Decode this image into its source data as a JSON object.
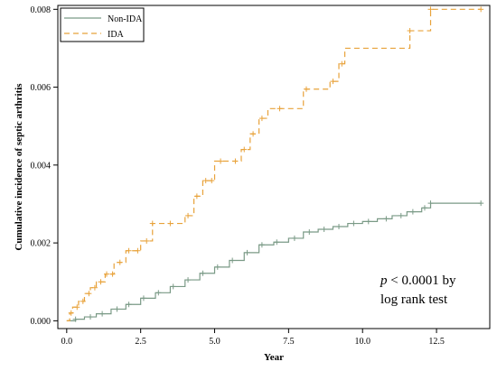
{
  "chart_data": {
    "type": "line",
    "xlabel": "Year",
    "ylabel": "Cumulative incidence of septic arthritis",
    "xlim": [
      -0.3,
      14.3
    ],
    "ylim": [
      -0.0002,
      0.0081
    ],
    "xticks": [
      0.0,
      2.5,
      5.0,
      7.5,
      10.0,
      12.5
    ],
    "xtick_labels": [
      "0.0",
      "2.5",
      "5.0",
      "7.5",
      "10.0",
      "12.5"
    ],
    "yticks": [
      0.0,
      0.002,
      0.004,
      0.006,
      0.008
    ],
    "ytick_labels": [
      "0.000",
      "0.002",
      "0.004",
      "0.006",
      "0.008"
    ],
    "grid": false,
    "legend_position": "top-left",
    "annotation_lines": [
      {
        "italic": "p",
        "text": " < 0.0001 by"
      },
      {
        "italic": "",
        "text": "log rank test"
      }
    ],
    "series": [
      {
        "name": "Non-IDA",
        "color": "#7a9a86",
        "line_style": "solid",
        "marker": "plus",
        "points": [
          [
            0.0,
            0.0
          ],
          [
            0.3,
            4e-05
          ],
          [
            0.6,
            0.0001
          ],
          [
            1.0,
            0.00018
          ],
          [
            1.5,
            0.0003
          ],
          [
            2.0,
            0.00042
          ],
          [
            2.5,
            0.00058
          ],
          [
            3.0,
            0.00072
          ],
          [
            3.5,
            0.00088
          ],
          [
            4.0,
            0.00105
          ],
          [
            4.5,
            0.00122
          ],
          [
            5.0,
            0.00138
          ],
          [
            5.5,
            0.00155
          ],
          [
            6.0,
            0.00175
          ],
          [
            6.5,
            0.00195
          ],
          [
            7.0,
            0.00202
          ],
          [
            7.5,
            0.00212
          ],
          [
            8.0,
            0.00228
          ],
          [
            8.5,
            0.00235
          ],
          [
            9.0,
            0.00242
          ],
          [
            9.5,
            0.0025
          ],
          [
            10.0,
            0.00255
          ],
          [
            10.5,
            0.00262
          ],
          [
            11.0,
            0.0027
          ],
          [
            11.5,
            0.0028
          ],
          [
            12.0,
            0.0029
          ],
          [
            12.3,
            0.00302
          ],
          [
            14.0,
            0.00302
          ]
        ],
        "censor_x": [
          0.3,
          0.8,
          1.2,
          1.7,
          2.1,
          2.6,
          3.1,
          3.6,
          4.1,
          4.6,
          5.1,
          5.6,
          6.1,
          6.6,
          7.1,
          7.7,
          8.2,
          8.7,
          9.2,
          9.7,
          10.2,
          10.8,
          11.3,
          11.7,
          12.1,
          12.3,
          14.0
        ]
      },
      {
        "name": "IDA",
        "color": "#e8a23a",
        "line_style": "dashed",
        "marker": "plus",
        "points": [
          [
            0.0,
            0.0
          ],
          [
            0.1,
            0.0002
          ],
          [
            0.2,
            0.00035
          ],
          [
            0.4,
            0.0005
          ],
          [
            0.6,
            0.0007
          ],
          [
            0.8,
            0.00085
          ],
          [
            1.0,
            0.001
          ],
          [
            1.3,
            0.0012
          ],
          [
            1.6,
            0.0015
          ],
          [
            2.0,
            0.0018
          ],
          [
            2.5,
            0.00205
          ],
          [
            2.9,
            0.0025
          ],
          [
            3.6,
            0.0025
          ],
          [
            4.0,
            0.0027
          ],
          [
            4.3,
            0.0032
          ],
          [
            4.6,
            0.0036
          ],
          [
            5.0,
            0.0041
          ],
          [
            5.5,
            0.0041
          ],
          [
            5.9,
            0.0044
          ],
          [
            6.2,
            0.0048
          ],
          [
            6.5,
            0.0052
          ],
          [
            6.8,
            0.00545
          ],
          [
            7.7,
            0.00545
          ],
          [
            8.0,
            0.00595
          ],
          [
            8.9,
            0.00615
          ],
          [
            9.2,
            0.0066
          ],
          [
            9.4,
            0.007
          ],
          [
            11.5,
            0.007
          ],
          [
            11.6,
            0.00745
          ],
          [
            12.2,
            0.00745
          ],
          [
            12.3,
            0.008
          ],
          [
            14.0,
            0.008
          ]
        ],
        "censor_x": [
          0.15,
          0.35,
          0.55,
          0.75,
          0.95,
          1.15,
          1.35,
          1.55,
          1.8,
          2.1,
          2.4,
          2.7,
          2.9,
          3.5,
          4.1,
          4.4,
          4.7,
          4.9,
          5.2,
          5.7,
          6.0,
          6.3,
          6.6,
          7.2,
          8.1,
          9.0,
          9.3,
          11.6,
          12.3,
          14.0
        ]
      }
    ]
  }
}
